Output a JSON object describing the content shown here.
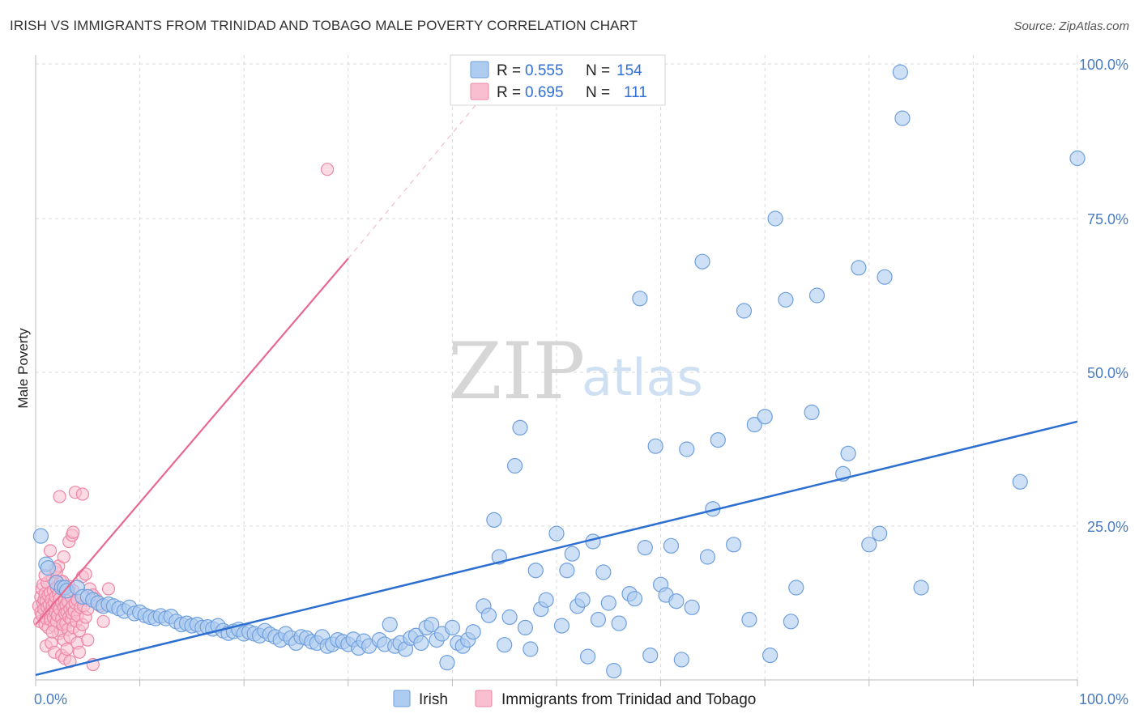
{
  "title": "IRISH VS IMMIGRANTS FROM TRINIDAD AND TOBAGO MALE POVERTY CORRELATION CHART",
  "source": "Source: ZipAtlas.com",
  "watermark": {
    "zip": "ZIP",
    "atlas": "atlas"
  },
  "legend": {
    "rows": [
      {
        "r_label": "R =",
        "r_value": "0.555",
        "n_label": "N =",
        "n_value": "154"
      },
      {
        "r_label": "R =",
        "r_value": "0.695",
        "n_label": "N =",
        "n_value": "111"
      }
    ]
  },
  "bottom_legend": [
    "Irish",
    "Immigrants from Trinidad and Tobago"
  ],
  "colors": {
    "irish_fill": "#aecbf0",
    "irish_stroke": "#6f9fdc",
    "irish_line": "#2c6fd1",
    "tt_fill": "#f7bfd0",
    "tt_stroke": "#ee86a6",
    "tt_line": "#e8688f",
    "grid": "#d9d9d9",
    "tick_text": "#4a7cc0"
  },
  "chart_data": {
    "type": "scatter",
    "title": "IRISH VS IMMIGRANTS FROM TRINIDAD AND TOBAGO MALE POVERTY CORRELATION CHART",
    "xlabel": "",
    "ylabel": "Male Poverty",
    "xlim": [
      0,
      100
    ],
    "ylim": [
      0,
      100
    ],
    "x_tick_labels": [
      "0.0%",
      "100.0%"
    ],
    "y_tick_labels": [
      "25.0%",
      "50.0%",
      "75.0%",
      "100.0%"
    ],
    "y_ticks": [
      25,
      50,
      75,
      100
    ],
    "grid": true,
    "legend_position": "top-center",
    "series": [
      {
        "name": "Irish",
        "r": 0.555,
        "n": 154,
        "trend": {
          "x": [
            0,
            100
          ],
          "y": [
            0.8,
            42.0
          ]
        },
        "points": [
          [
            0.5,
            23.4
          ],
          [
            1.0,
            18.8
          ],
          [
            1.2,
            18.2
          ],
          [
            2.0,
            15.8
          ],
          [
            2.5,
            15.0
          ],
          [
            2.8,
            15.0
          ],
          [
            3.0,
            14.5
          ],
          [
            4.0,
            15.0
          ],
          [
            4.5,
            13.5
          ],
          [
            5.0,
            13.5
          ],
          [
            5.5,
            13.0
          ],
          [
            6.0,
            12.5
          ],
          [
            6.5,
            12.0
          ],
          [
            7.0,
            12.3
          ],
          [
            7.5,
            12.0
          ],
          [
            8.0,
            11.6
          ],
          [
            8.5,
            11.2
          ],
          [
            9.0,
            11.8
          ],
          [
            9.5,
            10.8
          ],
          [
            10.0,
            11.0
          ],
          [
            10.5,
            10.5
          ],
          [
            11.0,
            10.2
          ],
          [
            11.5,
            10.0
          ],
          [
            12.0,
            10.4
          ],
          [
            12.5,
            10.0
          ],
          [
            13.0,
            10.3
          ],
          [
            13.5,
            9.5
          ],
          [
            14.0,
            9.0
          ],
          [
            14.5,
            9.2
          ],
          [
            15.0,
            8.8
          ],
          [
            15.5,
            9.0
          ],
          [
            16.0,
            8.5
          ],
          [
            16.5,
            8.6
          ],
          [
            17.0,
            8.3
          ],
          [
            17.5,
            8.8
          ],
          [
            18.0,
            8.0
          ],
          [
            18.5,
            7.6
          ],
          [
            19.0,
            7.9
          ],
          [
            19.5,
            8.2
          ],
          [
            20.0,
            7.5
          ],
          [
            20.5,
            7.8
          ],
          [
            21.0,
            7.5
          ],
          [
            21.5,
            7.2
          ],
          [
            22.0,
            8.0
          ],
          [
            22.5,
            7.4
          ],
          [
            23.0,
            7.0
          ],
          [
            23.5,
            6.5
          ],
          [
            24.0,
            7.5
          ],
          [
            24.5,
            6.8
          ],
          [
            25.0,
            6.0
          ],
          [
            25.5,
            7.0
          ],
          [
            26.0,
            6.8
          ],
          [
            26.5,
            6.2
          ],
          [
            27.0,
            6.0
          ],
          [
            27.5,
            7.0
          ],
          [
            28.0,
            5.5
          ],
          [
            28.5,
            5.8
          ],
          [
            29.0,
            6.5
          ],
          [
            29.5,
            6.2
          ],
          [
            30.0,
            5.8
          ],
          [
            30.5,
            6.6
          ],
          [
            31.0,
            5.2
          ],
          [
            31.5,
            6.3
          ],
          [
            32.0,
            5.5
          ],
          [
            33.0,
            6.5
          ],
          [
            33.5,
            5.8
          ],
          [
            34.0,
            9.0
          ],
          [
            34.5,
            5.5
          ],
          [
            35.0,
            6.0
          ],
          [
            35.5,
            5.0
          ],
          [
            36.0,
            6.8
          ],
          [
            36.5,
            7.2
          ],
          [
            37.0,
            6.0
          ],
          [
            37.5,
            8.5
          ],
          [
            38.0,
            9.0
          ],
          [
            38.5,
            6.5
          ],
          [
            39.0,
            7.5
          ],
          [
            39.5,
            2.8
          ],
          [
            40.0,
            8.5
          ],
          [
            40.5,
            6.0
          ],
          [
            41.0,
            5.5
          ],
          [
            41.5,
            6.5
          ],
          [
            42.0,
            7.8
          ],
          [
            43.0,
            12.0
          ],
          [
            43.5,
            10.5
          ],
          [
            44.0,
            26.0
          ],
          [
            44.5,
            20.0
          ],
          [
            45.0,
            5.7
          ],
          [
            45.5,
            10.2
          ],
          [
            46.0,
            34.8
          ],
          [
            46.5,
            41.0
          ],
          [
            47.0,
            8.5
          ],
          [
            47.5,
            5.0
          ],
          [
            48.0,
            17.8
          ],
          [
            48.5,
            11.5
          ],
          [
            49.0,
            13.0
          ],
          [
            50.0,
            23.8
          ],
          [
            50.5,
            8.8
          ],
          [
            51.0,
            17.8
          ],
          [
            51.5,
            20.5
          ],
          [
            52.0,
            12.0
          ],
          [
            52.5,
            13.0
          ],
          [
            53.0,
            3.8
          ],
          [
            53.5,
            22.5
          ],
          [
            54.0,
            9.8
          ],
          [
            54.5,
            17.5
          ],
          [
            55.0,
            12.5
          ],
          [
            55.5,
            1.5
          ],
          [
            56.0,
            9.2
          ],
          [
            57.0,
            14.0
          ],
          [
            57.5,
            13.2
          ],
          [
            58.0,
            62.0
          ],
          [
            58.5,
            21.5
          ],
          [
            59.0,
            4.0
          ],
          [
            59.5,
            38.0
          ],
          [
            60.0,
            15.5
          ],
          [
            60.5,
            13.8
          ],
          [
            61.0,
            21.8
          ],
          [
            61.5,
            12.8
          ],
          [
            62.0,
            3.3
          ],
          [
            62.5,
            37.5
          ],
          [
            63.0,
            11.8
          ],
          [
            64.0,
            68.0
          ],
          [
            64.5,
            20.0
          ],
          [
            65.0,
            27.8
          ],
          [
            65.5,
            39.0
          ],
          [
            67.0,
            22.0
          ],
          [
            68.0,
            60.0
          ],
          [
            68.5,
            9.8
          ],
          [
            69.0,
            41.5
          ],
          [
            70.0,
            42.8
          ],
          [
            70.5,
            4.0
          ],
          [
            71.0,
            75.0
          ],
          [
            72.0,
            61.8
          ],
          [
            72.5,
            9.5
          ],
          [
            73.0,
            15.0
          ],
          [
            74.5,
            43.5
          ],
          [
            75.0,
            62.5
          ],
          [
            77.5,
            33.5
          ],
          [
            78.0,
            36.8
          ],
          [
            79.0,
            67.0
          ],
          [
            80.0,
            22.0
          ],
          [
            81.0,
            23.8
          ],
          [
            81.5,
            65.5
          ],
          [
            83.0,
            98.8
          ],
          [
            83.2,
            91.3
          ],
          [
            85.0,
            15.0
          ],
          [
            94.5,
            32.2
          ],
          [
            100.0,
            84.8
          ]
        ]
      },
      {
        "name": "Immigrants from Trinidad and Tobago",
        "r": 0.695,
        "n": 111,
        "trend": {
          "x": [
            0,
            30
          ],
          "y": [
            9.0,
            68.5
          ]
        },
        "trend_extension": {
          "x": [
            30,
            43
          ],
          "y": [
            68.5,
            95.0
          ]
        },
        "points": [
          [
            0.3,
            12.0
          ],
          [
            0.4,
            9.5
          ],
          [
            0.5,
            13.5
          ],
          [
            0.5,
            11.0
          ],
          [
            0.6,
            14.8
          ],
          [
            0.6,
            10.5
          ],
          [
            0.7,
            12.5
          ],
          [
            0.7,
            15.5
          ],
          [
            0.8,
            11.5
          ],
          [
            0.8,
            13.0
          ],
          [
            0.9,
            9.0
          ],
          [
            0.9,
            14.0
          ],
          [
            1.0,
            10.0
          ],
          [
            1.0,
            12.8
          ],
          [
            1.1,
            11.8
          ],
          [
            1.1,
            15.8
          ],
          [
            1.2,
            8.5
          ],
          [
            1.2,
            13.8
          ],
          [
            1.3,
            12.2
          ],
          [
            1.3,
            10.8
          ],
          [
            1.4,
            14.2
          ],
          [
            1.4,
            9.8
          ],
          [
            1.5,
            13.0
          ],
          [
            1.5,
            11.2
          ],
          [
            1.6,
            16.5
          ],
          [
            1.6,
            12.0
          ],
          [
            1.7,
            10.2
          ],
          [
            1.7,
            14.5
          ],
          [
            1.8,
            8.8
          ],
          [
            1.8,
            12.6
          ],
          [
            1.9,
            11.0
          ],
          [
            1.9,
            13.5
          ],
          [
            2.0,
            9.5
          ],
          [
            2.0,
            15.0
          ],
          [
            2.1,
            12.0
          ],
          [
            2.1,
            10.5
          ],
          [
            2.2,
            14.0
          ],
          [
            2.2,
            7.5
          ],
          [
            2.3,
            11.5
          ],
          [
            2.3,
            13.2
          ],
          [
            2.4,
            8.0
          ],
          [
            2.4,
            16.0
          ],
          [
            2.5,
            10.0
          ],
          [
            2.5,
            12.5
          ],
          [
            2.6,
            9.0
          ],
          [
            2.6,
            14.8
          ],
          [
            2.7,
            11.8
          ],
          [
            2.7,
            6.5
          ],
          [
            2.8,
            13.0
          ],
          [
            2.8,
            10.8
          ],
          [
            2.9,
            12.2
          ],
          [
            2.9,
            9.2
          ],
          [
            3.0,
            11.0
          ],
          [
            3.0,
            14.0
          ],
          [
            3.1,
            8.2
          ],
          [
            3.1,
            12.8
          ],
          [
            3.2,
            10.2
          ],
          [
            3.2,
            15.2
          ],
          [
            3.3,
            11.5
          ],
          [
            3.3,
            7.0
          ],
          [
            3.4,
            13.5
          ],
          [
            3.4,
            9.8
          ],
          [
            3.5,
            12.0
          ],
          [
            3.5,
            10.8
          ],
          [
            3.6,
            8.5
          ],
          [
            3.6,
            14.5
          ],
          [
            3.7,
            11.2
          ],
          [
            3.8,
            12.5
          ],
          [
            3.9,
            9.5
          ],
          [
            4.0,
            10.5
          ],
          [
            4.0,
            13.0
          ],
          [
            4.2,
            8.0
          ],
          [
            4.3,
            11.8
          ],
          [
            4.5,
            9.0
          ],
          [
            4.6,
            12.0
          ],
          [
            4.8,
            10.2
          ],
          [
            5.0,
            11.5
          ],
          [
            5.2,
            14.8
          ],
          [
            5.5,
            13.8
          ],
          [
            1.0,
            5.5
          ],
          [
            1.5,
            6.0
          ],
          [
            1.8,
            4.5
          ],
          [
            2.0,
            17.5
          ],
          [
            2.2,
            18.5
          ],
          [
            2.5,
            4.0
          ],
          [
            2.8,
            3.5
          ],
          [
            3.0,
            5.0
          ],
          [
            3.2,
            22.5
          ],
          [
            3.5,
            23.5
          ],
          [
            3.6,
            24.0
          ],
          [
            3.8,
            30.5
          ],
          [
            4.0,
            6.0
          ],
          [
            4.2,
            4.5
          ],
          [
            4.5,
            16.8
          ],
          [
            5.0,
            6.5
          ],
          [
            5.5,
            2.5
          ],
          [
            6.5,
            9.5
          ],
          [
            7.0,
            14.8
          ],
          [
            2.3,
            29.8
          ],
          [
            4.5,
            30.2
          ],
          [
            1.4,
            21.0
          ],
          [
            3.3,
            3.0
          ],
          [
            4.8,
            17.2
          ],
          [
            2.6,
            16.0
          ],
          [
            1.9,
            18.0
          ],
          [
            0.9,
            17.0
          ],
          [
            5.8,
            13.2
          ],
          [
            28.0,
            83.0
          ],
          [
            6.2,
            12.0
          ],
          [
            2.7,
            20.0
          ],
          [
            1.6,
            7.8
          ]
        ]
      }
    ]
  }
}
